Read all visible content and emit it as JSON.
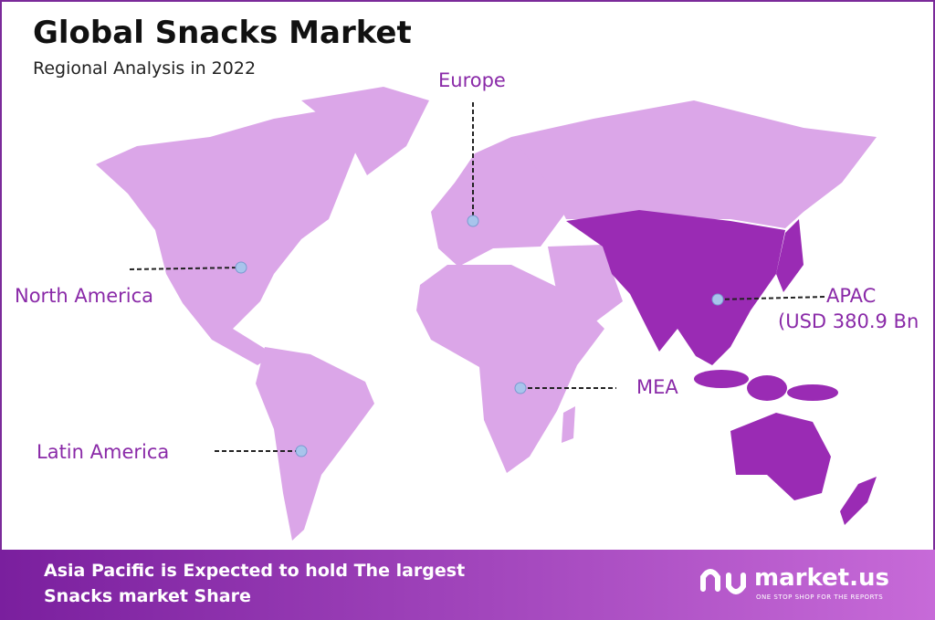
{
  "header": {
    "title": "Global Snacks Market",
    "subtitle": "Regional Analysis in 2022"
  },
  "regions": [
    {
      "label": "Europe"
    },
    {
      "label": "North America"
    },
    {
      "label": "APAC",
      "sublabel": "(USD 380.9 Bn"
    },
    {
      "label": "MEA"
    },
    {
      "label": "Latin America"
    }
  ],
  "footer": {
    "lines": [
      "Asia Pacific is Expected to hold The largest",
      "Snacks market Share"
    ],
    "brand": "market.us",
    "tagline": "ONE STOP SHOP FOR THE REPORTS"
  }
}
